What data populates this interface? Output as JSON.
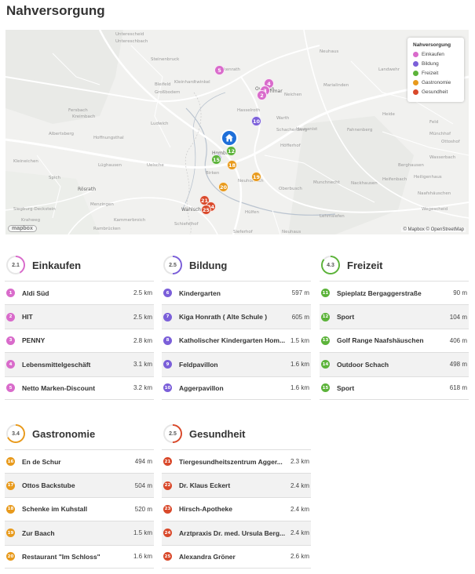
{
  "page_title": "Nahversorgung",
  "map": {
    "legend_title": "Nahversorgung",
    "legend": [
      {
        "label": "Einkaufen",
        "color": "#d96bcb"
      },
      {
        "label": "Bildung",
        "color": "#7b5fd9"
      },
      {
        "label": "Freizeit",
        "color": "#5cb33a"
      },
      {
        "label": "Gastronomie",
        "color": "#e89a1c"
      },
      {
        "label": "Gesundheit",
        "color": "#d9492b"
      }
    ],
    "logo": "mapbox",
    "attribution": "© Mapbox © OpenStreetMap",
    "labels": [
      "Unterescheid",
      "Untereschbach",
      "Steinenbruck",
      "Herkenrath",
      "Bleifeld",
      "Großbodem",
      "Kleinhardtwinkel",
      "Ludwich",
      "Kreimbach",
      "Fersbach",
      "Albertsberg",
      "Hoffnungsthal",
      "Lüghausen",
      "Kleineichen",
      "Spich",
      "Rösrath",
      "Menzingen",
      "Kammerbroich",
      "Siegburg-Deckstein",
      "Rambrücken",
      "Krahweg",
      "Neichen",
      "Hombach",
      "Birken",
      "Neuhonrath",
      "Wahlscheid",
      "Hülfen",
      "Marialinden",
      "Landwehr",
      "Neuhaus",
      "Fahnenberg",
      "Heide",
      "Höfferhof",
      "Munchnecht",
      "Nackhausen",
      "Heifenbach",
      "Heiligenhaus",
      "Berghausen",
      "Oberbusch",
      "Naafshäuschen",
      "Wegescheid",
      "Lehmsiefen",
      "Lohmar",
      "Overath",
      "Wolfsbach",
      "Warth",
      "Hausanist",
      "Schachenberg",
      "Neuhaus",
      "Sieferhof",
      "Feld",
      "Münchhof",
      "Wasserbach",
      "Ottoshof",
      "Uelsche",
      "Schiefelhof",
      "Hasselroth"
    ],
    "pins": [
      {
        "n": "5",
        "color": "#d96bcb"
      },
      {
        "n": "4",
        "color": "#d96bcb"
      },
      {
        "n": "3",
        "color": "#d96bcb"
      },
      {
        "n": "2",
        "color": "#d96bcb"
      },
      {
        "n": "10",
        "color": "#7b5fd9"
      },
      {
        "n": "9",
        "color": "#7b5fd9"
      },
      {
        "n": "12",
        "color": "#5cb33a"
      },
      {
        "n": "15",
        "color": "#5cb33a"
      },
      {
        "n": "18",
        "color": "#e89a1c"
      },
      {
        "n": "19",
        "color": "#e89a1c"
      },
      {
        "n": "20",
        "color": "#e89a1c"
      },
      {
        "n": "21",
        "color": "#d9492b"
      },
      {
        "n": "24",
        "color": "#d9492b"
      },
      {
        "n": "25",
        "color": "#d9492b"
      }
    ]
  },
  "categories": [
    {
      "title": "Einkaufen",
      "score": "2.1",
      "color": "#d96bcb",
      "progress": 0.42,
      "items": [
        {
          "n": "1",
          "name": "Aldi Süd",
          "dist": "2.5 km"
        },
        {
          "n": "2",
          "name": "HIT",
          "dist": "2.5 km"
        },
        {
          "n": "3",
          "name": "PENNY",
          "dist": "2.8 km"
        },
        {
          "n": "4",
          "name": "Lebensmittelgeschäft",
          "dist": "3.1 km"
        },
        {
          "n": "5",
          "name": "Netto Marken-Discount",
          "dist": "3.2 km"
        }
      ]
    },
    {
      "title": "Bildung",
      "score": "2.5",
      "color": "#7b5fd9",
      "progress": 0.5,
      "items": [
        {
          "n": "6",
          "name": "Kindergarten",
          "dist": "597 m"
        },
        {
          "n": "7",
          "name": "Kiga Honrath ( Alte Schule )",
          "dist": "605 m"
        },
        {
          "n": "8",
          "name": "Katholischer Kindergarten Hom...",
          "dist": "1.5 km"
        },
        {
          "n": "9",
          "name": "Feldpavillon",
          "dist": "1.6 km"
        },
        {
          "n": "10",
          "name": "Aggerpavillon",
          "dist": "1.6 km"
        }
      ]
    },
    {
      "title": "Freizeit",
      "score": "4.3",
      "color": "#5cb33a",
      "progress": 0.86,
      "items": [
        {
          "n": "11",
          "name": "Spieplatz Bergaggerstraße",
          "dist": "90 m"
        },
        {
          "n": "12",
          "name": "Sport",
          "dist": "104 m"
        },
        {
          "n": "13",
          "name": "Golf Range Naafshäuschen",
          "dist": "406 m"
        },
        {
          "n": "14",
          "name": "Outdoor Schach",
          "dist": "498 m"
        },
        {
          "n": "15",
          "name": "Sport",
          "dist": "618 m"
        }
      ]
    },
    {
      "title": "Gastronomie",
      "score": "3.4",
      "color": "#e89a1c",
      "progress": 0.68,
      "items": [
        {
          "n": "16",
          "name": "En de Schur",
          "dist": "494 m"
        },
        {
          "n": "17",
          "name": "Ottos Backstube",
          "dist": "504 m"
        },
        {
          "n": "18",
          "name": "Schenke im Kuhstall",
          "dist": "520 m"
        },
        {
          "n": "19",
          "name": "Zur Baach",
          "dist": "1.5 km"
        },
        {
          "n": "20",
          "name": "Restaurant \"Im Schloss\"",
          "dist": "1.6 km"
        }
      ]
    },
    {
      "title": "Gesundheit",
      "score": "2.5",
      "color": "#d9492b",
      "progress": 0.5,
      "items": [
        {
          "n": "21",
          "name": "Tiergesundheitszentrum Agger...",
          "dist": "2.3 km"
        },
        {
          "n": "22",
          "name": "Dr. Klaus Eckert",
          "dist": "2.4 km"
        },
        {
          "n": "23",
          "name": "Hirsch-Apotheke",
          "dist": "2.4 km"
        },
        {
          "n": "24",
          "name": "Arztpraxis Dr. med. Ursula Berg...",
          "dist": "2.4 km"
        },
        {
          "n": "25",
          "name": "Alexandra Gröner",
          "dist": "2.6 km"
        }
      ]
    }
  ]
}
